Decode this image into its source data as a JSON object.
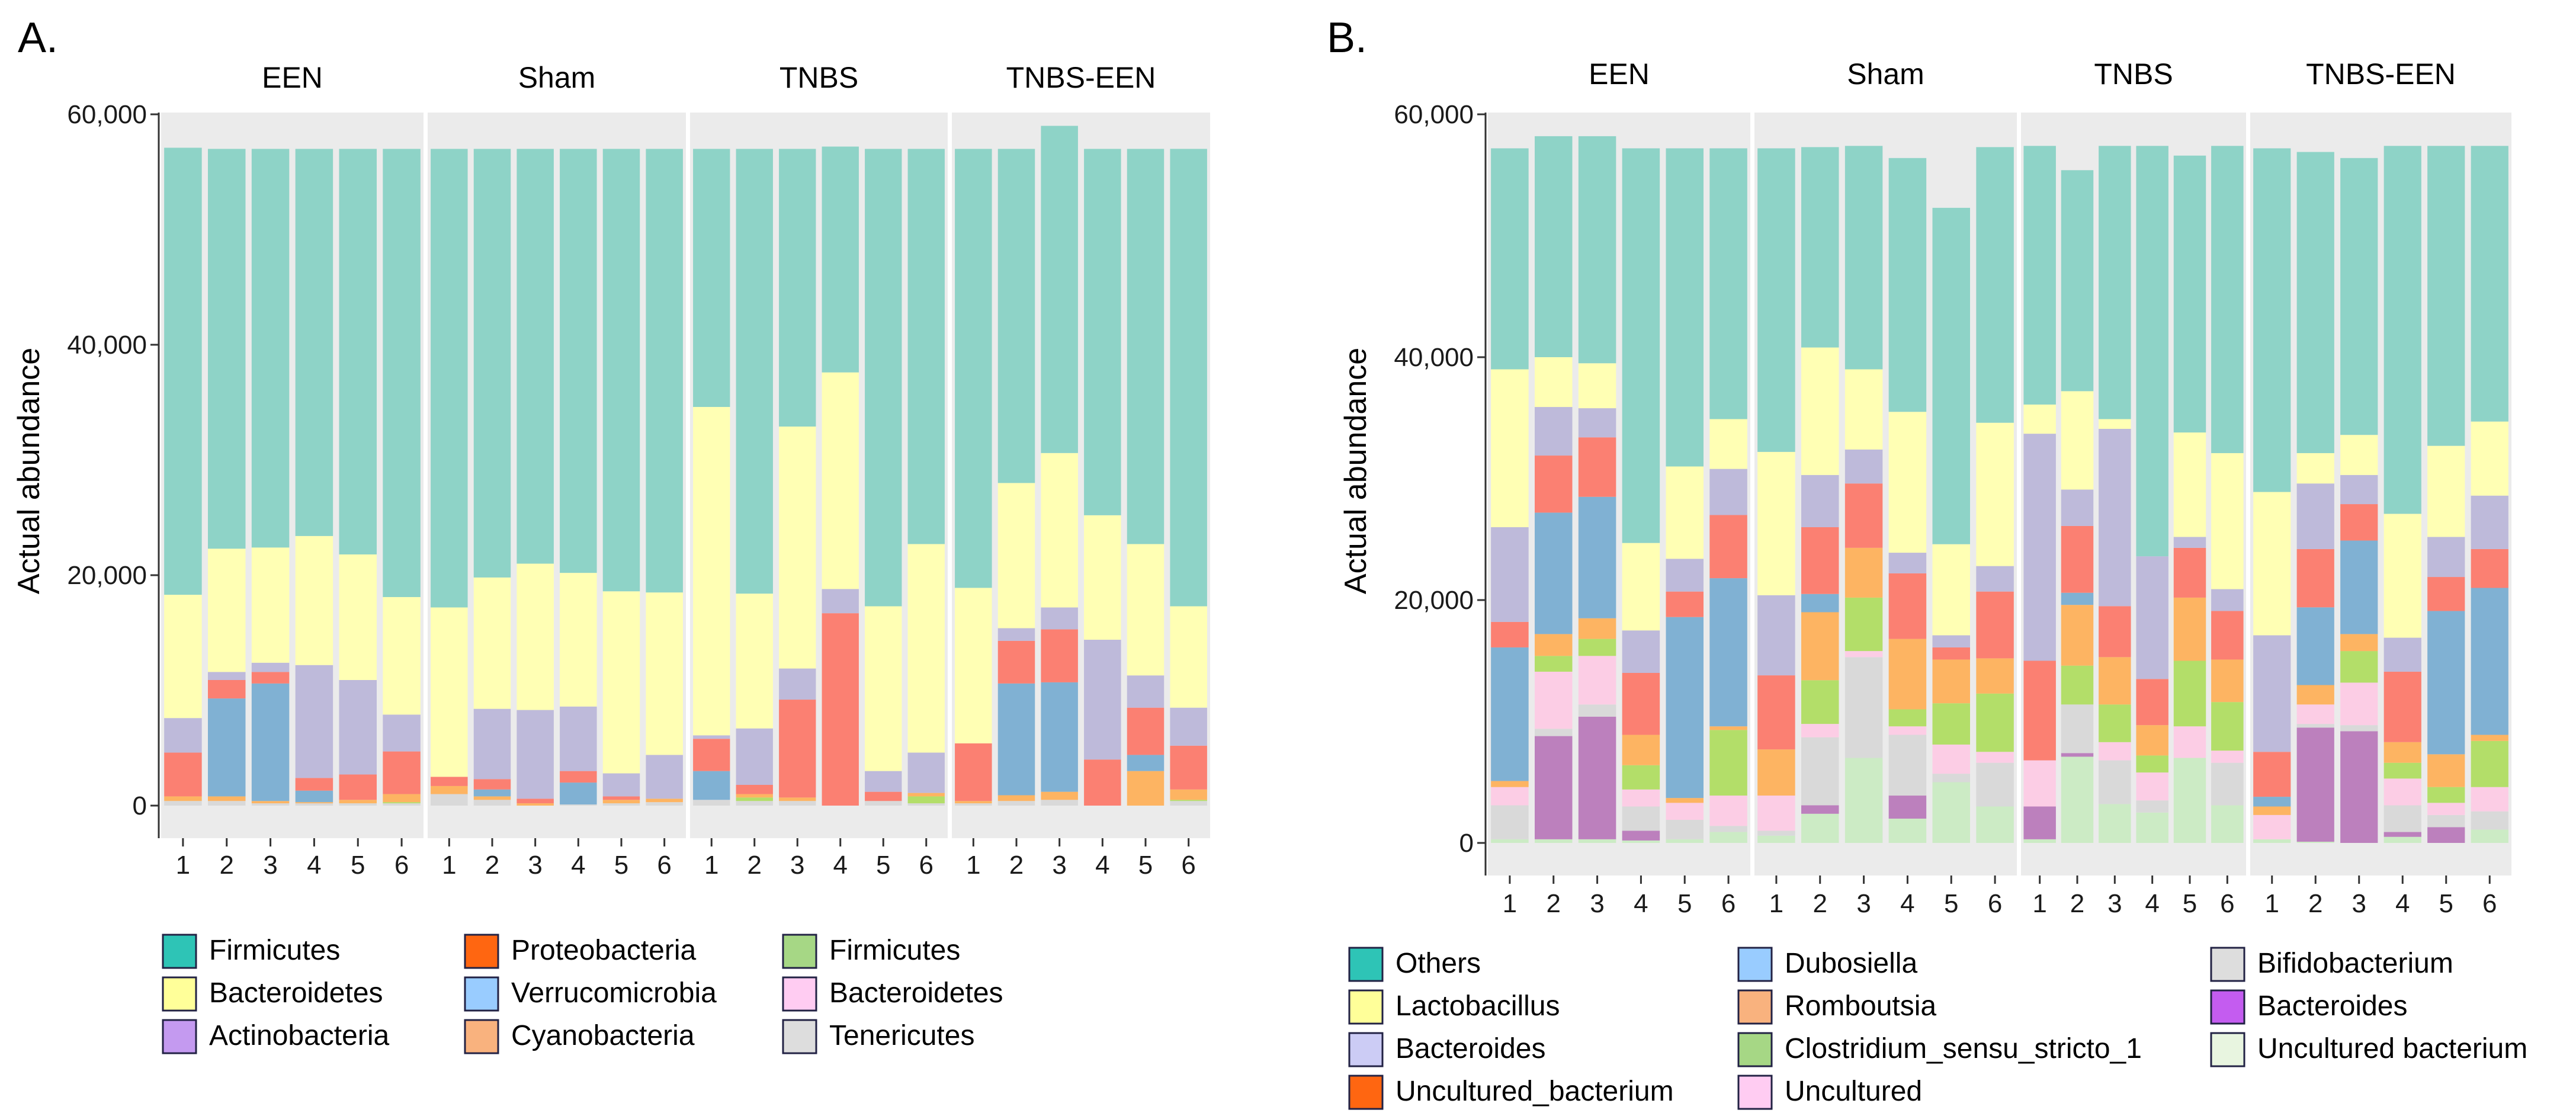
{
  "chart_data": [
    {
      "id": "A",
      "panel_label": "A.",
      "type": "bar",
      "stacked": true,
      "ylabel": "Actual abundance",
      "ylim": [
        0,
        60000
      ],
      "yticks": [
        0,
        20000,
        40000,
        60000
      ],
      "ytick_labels": [
        "0",
        "20,000",
        "40,000",
        "60,000"
      ],
      "categories": [
        "1",
        "2",
        "3",
        "4",
        "5",
        "6"
      ],
      "colors": [
        "#8ED3C7",
        "#FFFFB4",
        "#BEBADA",
        "#FB8072",
        "#80B1D3",
        "#FDB462",
        "#B3DE69",
        "#FCCDE5",
        "#D9D9D9"
      ],
      "series_names": [
        "Firmicutes",
        "Bacteroidetes",
        "Actinobacteria",
        "Proteobacteria",
        "Verrucomicrobia",
        "Cyanobacteria",
        "Firmicutes",
        "Bacteroidetes",
        "Tenericutes"
      ],
      "facets": [
        {
          "name": "EEN",
          "stacks": [
            [
              38800,
              10700,
              3000,
              3800,
              0,
              400,
              0,
              0,
              400
            ],
            [
              34700,
              10700,
              700,
              1600,
              8500,
              400,
              0,
              0,
              400
            ],
            [
              34600,
              10000,
              800,
              1000,
              10200,
              200,
              0,
              0,
              200
            ],
            [
              33600,
              11200,
              9800,
              1100,
              1000,
              100,
              0,
              0,
              200
            ],
            [
              35200,
              10900,
              8200,
              2200,
              0,
              300,
              0,
              0,
              200
            ],
            [
              38900,
              10200,
              3200,
              3700,
              0,
              700,
              100,
              0,
              200
            ]
          ]
        },
        {
          "name": "Sham",
          "stacks": [
            [
              39800,
              14700,
              0,
              800,
              0,
              700,
              0,
              0,
              1000
            ],
            [
              37200,
              11400,
              6100,
              900,
              600,
              300,
              0,
              0,
              500
            ],
            [
              36000,
              12700,
              7700,
              400,
              0,
              200,
              0,
              0,
              0
            ],
            [
              36800,
              11600,
              5600,
              1000,
              1900,
              0,
              0,
              0,
              100
            ],
            [
              38400,
              15800,
              2000,
              300,
              0,
              300,
              0,
              0,
              200
            ],
            [
              38500,
              14100,
              3800,
              0,
              0,
              300,
              0,
              0,
              300
            ]
          ]
        },
        {
          "name": "TNBS",
          "stacks": [
            [
              22400,
              28500,
              300,
              2800,
              2500,
              0,
              0,
              0,
              500
            ],
            [
              38600,
              11700,
              4900,
              800,
              0,
              300,
              300,
              0,
              400
            ],
            [
              24100,
              21000,
              2700,
              8500,
              0,
              300,
              0,
              0,
              400
            ],
            [
              19600,
              18800,
              2100,
              16700,
              0,
              0,
              0,
              0,
              0
            ],
            [
              39700,
              14300,
              1800,
              800,
              0,
              0,
              0,
              0,
              400
            ],
            [
              34300,
              18100,
              3500,
              0,
              0,
              300,
              600,
              0,
              200
            ]
          ]
        },
        {
          "name": "TNBS-EEN",
          "stacks": [
            [
              38100,
              13500,
              0,
              5000,
              0,
              200,
              0,
              0,
              200
            ],
            [
              29000,
              12600,
              1100,
              3700,
              9700,
              500,
              0,
              0,
              400
            ],
            [
              28400,
              13400,
              1900,
              4600,
              9500,
              700,
              0,
              0,
              500
            ],
            [
              31800,
              10800,
              10400,
              4000,
              0,
              0,
              0,
              0,
              0
            ],
            [
              34300,
              11400,
              2800,
              4100,
              1400,
              3000,
              0,
              0,
              0
            ],
            [
              39700,
              8800,
              3300,
              3800,
              0,
              900,
              100,
              0,
              400
            ]
          ]
        }
      ],
      "legend": {
        "position": "bottom",
        "entries": [
          {
            "label": "Firmicutes",
            "color": "#2EC4B6"
          },
          {
            "label": "Bacteroidetes",
            "color": "#FFFF99"
          },
          {
            "label": "Actinobacteria",
            "color": "#C49AF0"
          },
          {
            "label": "Proteobacteria",
            "color": "#FF6611"
          },
          {
            "label": "Verrucomicrobia",
            "color": "#99CCFF"
          },
          {
            "label": "Cyanobacteria",
            "color": "#F9B27E"
          },
          {
            "label": "Firmicutes",
            "color": "#A6D785"
          },
          {
            "label": "Bacteroidetes",
            "color": "#FFCCF2"
          },
          {
            "label": "Tenericutes",
            "color": "#DDDDDD"
          }
        ]
      }
    },
    {
      "id": "B",
      "panel_label": "B.",
      "type": "bar",
      "stacked": true,
      "ylabel": "Actual abundance",
      "ylim": [
        0,
        60000
      ],
      "yticks": [
        0,
        20000,
        40000,
        60000
      ],
      "ytick_labels": [
        "0",
        "20,000",
        "40,000",
        "60,000"
      ],
      "categories": [
        "1",
        "2",
        "3",
        "4",
        "5",
        "6"
      ],
      "colors": [
        "#8ED3C7",
        "#FFFFB4",
        "#BEBADA",
        "#FB8072",
        "#80B1D3",
        "#FDB462",
        "#B3DE69",
        "#FCCDE5",
        "#D9D9D9",
        "#BC80BD",
        "#CCEBC5"
      ],
      "series_names": [
        "Others",
        "Lactobacillus",
        "Bacteroides",
        "Uncultured_bacterium",
        "Dubosiella",
        "Romboutsia",
        "Clostridium_sensu_stricto_1",
        "Uncultured",
        "Bifidobacterium",
        "Bacteroides",
        "Uncultured bacterium"
      ],
      "facets": [
        {
          "name": "EEN",
          "stacks": [
            [
              18200,
              13000,
              7800,
              2100,
              11000,
              500,
              0,
              1500,
              2800,
              0,
              300
            ],
            [
              18200,
              4100,
              4000,
              4700,
              10000,
              1800,
              1300,
              4700,
              600,
              8500,
              300
            ],
            [
              18700,
              3700,
              2400,
              4900,
              10000,
              1700,
              1400,
              4000,
              1000,
              10100,
              300
            ],
            [
              32500,
              7200,
              3500,
              5100,
              0,
              2500,
              2000,
              1400,
              2000,
              800,
              200
            ],
            [
              26200,
              7600,
              2700,
              2100,
              14900,
              400,
              0,
              1400,
              1600,
              0,
              300
            ],
            [
              22300,
              4100,
              3800,
              5200,
              12200,
              300,
              5400,
              2500,
              500,
              0,
              900
            ]
          ]
        },
        {
          "name": "Sham",
          "stacks": [
            [
              25000,
              11800,
              6600,
              6100,
              0,
              3800,
              0,
              2900,
              400,
              0,
              600
            ],
            [
              16500,
              10500,
              4300,
              5500,
              1500,
              5600,
              3600,
              1100,
              5600,
              700,
              2400
            ],
            [
              18400,
              6600,
              2800,
              5300,
              0,
              4100,
              4400,
              500,
              8300,
              0,
              7000
            ],
            [
              20900,
              11600,
              1700,
              5400,
              0,
              5800,
              1400,
              700,
              5000,
              1900,
              2000
            ],
            [
              27700,
              7500,
              1000,
              1000,
              0,
              3600,
              3400,
              2400,
              700,
              0,
              5000
            ],
            [
              22700,
              11800,
              2100,
              5500,
              0,
              2900,
              4800,
              900,
              3600,
              0,
              3000
            ]
          ]
        },
        {
          "name": "TNBS",
          "stacks": [
            [
              21300,
              2400,
              18700,
              8200,
              0,
              0,
              0,
              3800,
              0,
              2700,
              300
            ],
            [
              18200,
              8100,
              3000,
              5500,
              1000,
              5000,
              3200,
              0,
              4000,
              300,
              7100
            ],
            [
              22500,
              800,
              14600,
              4200,
              0,
              3900,
              3100,
              1500,
              3600,
              0,
              3200
            ],
            [
              33800,
              0,
              10100,
              3800,
              0,
              2500,
              1400,
              2300,
              1000,
              0,
              2500
            ],
            [
              22800,
              8600,
              900,
              4100,
              0,
              5200,
              5400,
              2600,
              0,
              0,
              7000
            ],
            [
              25300,
              11200,
              1800,
              4000,
              0,
              3500,
              4000,
              1000,
              3500,
              0,
              3100
            ]
          ]
        },
        {
          "name": "TNBS-EEN",
          "stacks": [
            [
              28300,
              11800,
              9600,
              3700,
              800,
              700,
              0,
              2000,
              0,
              0,
              300
            ],
            [
              24800,
              2500,
              5400,
              4800,
              6400,
              1600,
              0,
              1600,
              300,
              9400,
              100
            ],
            [
              22800,
              3300,
              2400,
              3000,
              7700,
              1400,
              2600,
              3500,
              500,
              9200,
              0
            ],
            [
              30300,
              10200,
              2800,
              5800,
              0,
              1700,
              1300,
              2200,
              2200,
              400,
              500
            ],
            [
              24700,
              7500,
              3300,
              2800,
              11800,
              2700,
              1300,
              1000,
              1000,
              1300,
              0
            ],
            [
              22700,
              6100,
              4400,
              3200,
              12100,
              500,
              3800,
              2000,
              1500,
              0,
              1100
            ]
          ]
        }
      ],
      "legend": {
        "position": "bottom",
        "entries": [
          {
            "label": "Others",
            "color": "#2EC4B6"
          },
          {
            "label": "Lactobacillus",
            "color": "#FFFF99"
          },
          {
            "label": "Bacteroides",
            "color": "#CCCCF5"
          },
          {
            "label": "Uncultured_bacterium",
            "color": "#FF6611"
          },
          {
            "label": "Dubosiella",
            "color": "#99CCFF"
          },
          {
            "label": "Romboutsia",
            "color": "#F9B27E"
          },
          {
            "label": "Clostridium_sensu_stricto_1",
            "color": "#A6D785"
          },
          {
            "label": "Uncultured",
            "color": "#FFCCF2"
          },
          {
            "label": "Bifidobacterium",
            "color": "#DDDDDD"
          },
          {
            "label": "Bacteroides",
            "color": "#C45CF0"
          },
          {
            "label": "Uncultured bacterium",
            "color": "#E8F5E0"
          }
        ]
      }
    }
  ]
}
